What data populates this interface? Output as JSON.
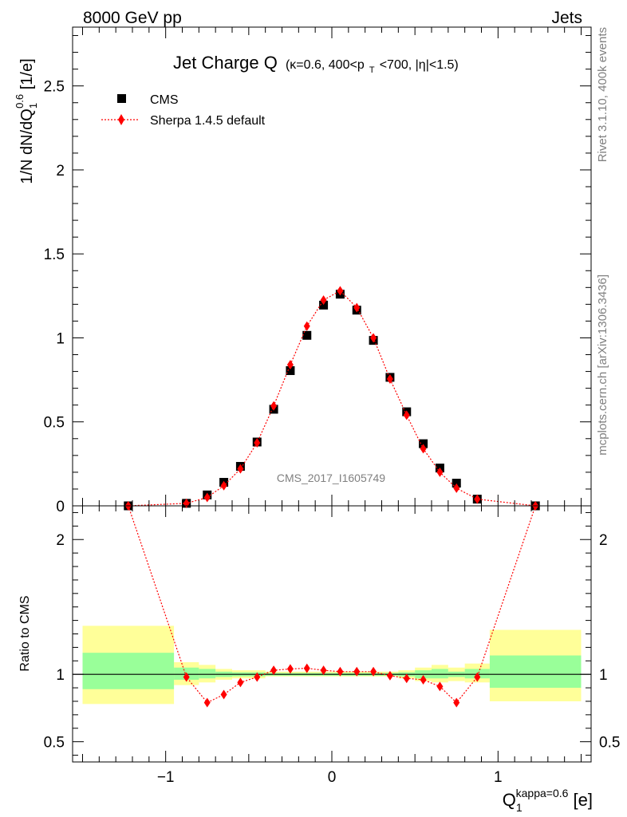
{
  "header": {
    "left": "8000 GeV pp",
    "right": "Jets"
  },
  "side_text": {
    "rivet": "Rivet 3.1.10,  400k events",
    "mcplots": "mcplots.cern.ch [arXiv:1306.3436]"
  },
  "watermark": "CMS_2017_I1605749",
  "chart_data": [
    {
      "type": "scatter",
      "panel": "main",
      "title": "Jet Charge Q",
      "subtitle_parts": [
        "(κ=0.6, 400<p",
        "T",
        "<700, |η|<1.5)"
      ],
      "ylabel_parts": [
        "1/N dN/dQ",
        "1",
        "0.6",
        " [1/e]"
      ],
      "ylim": [
        0,
        2.85
      ],
      "xlim": [
        -1.56,
        1.56
      ],
      "y_ticks": [
        0,
        0.5,
        1,
        1.5,
        2,
        2.5
      ],
      "y_tick_labels": [
        "0",
        "0.5",
        "1",
        "1.5",
        "2",
        "2.5"
      ],
      "legend": [
        "CMS",
        "Sherpa 1.4.5 default"
      ],
      "legend_position": "top-left",
      "series": [
        {
          "name": "CMS",
          "marker": "square",
          "color": "#000000",
          "x": [
            -1.225,
            -0.875,
            -0.75,
            -0.65,
            -0.55,
            -0.45,
            -0.35,
            -0.25,
            -0.15,
            -0.05,
            0.05,
            0.15,
            0.25,
            0.35,
            0.45,
            0.55,
            0.65,
            0.75,
            0.875,
            1.225
          ],
          "y": [
            0.0,
            0.015,
            0.065,
            0.14,
            0.235,
            0.38,
            0.575,
            0.805,
            1.015,
            1.195,
            1.26,
            1.165,
            0.985,
            0.765,
            0.56,
            0.37,
            0.225,
            0.135,
            0.04,
            0.0
          ]
        },
        {
          "name": "Sherpa 1.4.5 default",
          "marker": "diamond",
          "color": "#ff0000",
          "x": [
            -1.225,
            -0.875,
            -0.75,
            -0.65,
            -0.55,
            -0.45,
            -0.35,
            -0.25,
            -0.15,
            -0.05,
            0.05,
            0.15,
            0.25,
            0.35,
            0.45,
            0.55,
            0.65,
            0.75,
            0.875,
            1.225
          ],
          "y": [
            0.0,
            0.015,
            0.05,
            0.12,
            0.22,
            0.375,
            0.595,
            0.84,
            1.07,
            1.225,
            1.28,
            1.18,
            1.0,
            0.755,
            0.54,
            0.34,
            0.2,
            0.105,
            0.04,
            0.0
          ]
        }
      ]
    },
    {
      "type": "line",
      "panel": "ratio",
      "ylabel": "Ratio to CMS",
      "ylim": [
        0.35,
        2.25
      ],
      "xlim": [
        -1.56,
        1.56
      ],
      "y_ticks": [
        0.5,
        1,
        2
      ],
      "y_tick_labels": [
        "0.5",
        "1",
        "2"
      ],
      "x_ticks": [
        -1,
        0,
        1
      ],
      "x_tick_labels": [
        "−1",
        "0",
        "1"
      ],
      "xlabel_parts": [
        "Q",
        "1",
        "kappa=0.6",
        " [e]"
      ],
      "reference": 1,
      "bands": [
        {
          "x0": -1.5,
          "x1": -0.95,
          "green": [
            0.89,
            1.16
          ],
          "yellow": [
            0.78,
            1.36
          ]
        },
        {
          "x0": -0.95,
          "x1": -0.8,
          "green": [
            0.96,
            1.05
          ],
          "yellow": [
            0.92,
            1.09
          ]
        },
        {
          "x0": -0.8,
          "x1": -0.7,
          "green": [
            0.97,
            1.04
          ],
          "yellow": [
            0.94,
            1.07
          ]
        },
        {
          "x0": -0.7,
          "x1": -0.6,
          "green": [
            0.98,
            1.02
          ],
          "yellow": [
            0.96,
            1.04
          ]
        },
        {
          "x0": -0.6,
          "x1": -0.4,
          "green": [
            0.985,
            1.015
          ],
          "yellow": [
            0.97,
            1.03
          ]
        },
        {
          "x0": -0.4,
          "x1": 0.4,
          "green": [
            0.99,
            1.01
          ],
          "yellow": [
            0.985,
            1.02
          ]
        },
        {
          "x0": 0.4,
          "x1": 0.5,
          "green": [
            0.985,
            1.015
          ],
          "yellow": [
            0.97,
            1.03
          ]
        },
        {
          "x0": 0.5,
          "x1": 0.6,
          "green": [
            0.97,
            1.03
          ],
          "yellow": [
            0.95,
            1.05
          ]
        },
        {
          "x0": 0.6,
          "x1": 0.7,
          "green": [
            0.97,
            1.04
          ],
          "yellow": [
            0.94,
            1.07
          ]
        },
        {
          "x0": 0.7,
          "x1": 0.8,
          "green": [
            0.98,
            1.02
          ],
          "yellow": [
            0.95,
            1.05
          ]
        },
        {
          "x0": 0.8,
          "x1": 0.95,
          "green": [
            0.97,
            1.04
          ],
          "yellow": [
            0.94,
            1.08
          ]
        },
        {
          "x0": 0.95,
          "x1": 1.5,
          "green": [
            0.9,
            1.14
          ],
          "yellow": [
            0.8,
            1.33
          ]
        }
      ],
      "series": [
        {
          "name": "Sherpa 1.4.5 default",
          "color": "#ff0000",
          "x": [
            -0.875,
            -0.75,
            -0.65,
            -0.55,
            -0.45,
            -0.35,
            -0.25,
            -0.15,
            -0.05,
            0.05,
            0.15,
            0.25,
            0.35,
            0.45,
            0.55,
            0.65,
            0.75,
            0.875
          ],
          "y": [
            0.98,
            0.79,
            0.85,
            0.94,
            0.98,
            1.03,
            1.04,
            1.045,
            1.03,
            1.02,
            1.02,
            1.02,
            0.99,
            0.97,
            0.96,
            0.91,
            0.79,
            0.98
          ],
          "offscale_left_x": -1.225,
          "offscale_right_x": 1.225
        }
      ]
    }
  ]
}
